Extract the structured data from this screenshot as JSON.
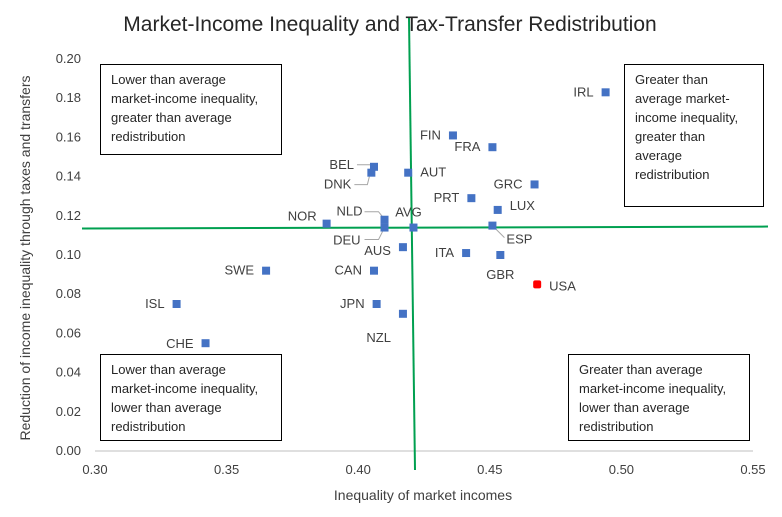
{
  "chart_data": {
    "type": "scatter",
    "title": "Market-Income Inequality and Tax-Transfer Redistribution",
    "xlabel": "Inequality of market incomes",
    "ylabel": "Reduction of income inequality through taxes and transfers",
    "xlim": [
      0.3,
      0.55
    ],
    "ylim": [
      0.0,
      0.2
    ],
    "xticks": [
      "0.30",
      "0.35",
      "0.40",
      "0.45",
      "0.50",
      "0.55"
    ],
    "yticks": [
      "0.00",
      "0.02",
      "0.04",
      "0.06",
      "0.08",
      "0.10",
      "0.12",
      "0.14",
      "0.16",
      "0.18",
      "0.20"
    ],
    "grid": false,
    "legend": "none",
    "reference_lines": {
      "average_x": 0.421,
      "average_y": 0.114
    },
    "points": [
      {
        "label": "IRL",
        "x": 0.494,
        "y": 0.183
      },
      {
        "label": "FIN",
        "x": 0.436,
        "y": 0.161
      },
      {
        "label": "FRA",
        "x": 0.451,
        "y": 0.155
      },
      {
        "label": "BEL",
        "x": 0.406,
        "y": 0.145
      },
      {
        "label": "DNK",
        "x": 0.405,
        "y": 0.142
      },
      {
        "label": "AUT",
        "x": 0.419,
        "y": 0.142
      },
      {
        "label": "GRC",
        "x": 0.467,
        "y": 0.136
      },
      {
        "label": "PRT",
        "x": 0.443,
        "y": 0.129
      },
      {
        "label": "LUX",
        "x": 0.453,
        "y": 0.123
      },
      {
        "label": "NOR",
        "x": 0.388,
        "y": 0.116
      },
      {
        "label": "NLD",
        "x": 0.41,
        "y": 0.118
      },
      {
        "label": "AVG",
        "x": 0.421,
        "y": 0.114
      },
      {
        "label": "DEU",
        "x": 0.41,
        "y": 0.114
      },
      {
        "label": "ESP",
        "x": 0.451,
        "y": 0.115
      },
      {
        "label": "AUS",
        "x": 0.417,
        "y": 0.104
      },
      {
        "label": "ITA",
        "x": 0.441,
        "y": 0.101
      },
      {
        "label": "GBR",
        "x": 0.454,
        "y": 0.1
      },
      {
        "label": "SWE",
        "x": 0.365,
        "y": 0.092
      },
      {
        "label": "CAN",
        "x": 0.406,
        "y": 0.092
      },
      {
        "label": "USA",
        "x": 0.468,
        "y": 0.085,
        "highlight": true
      },
      {
        "label": "ISL",
        "x": 0.331,
        "y": 0.075
      },
      {
        "label": "JPN",
        "x": 0.407,
        "y": 0.075
      },
      {
        "label": "NZL",
        "x": 0.417,
        "y": 0.07
      },
      {
        "label": "CHE",
        "x": 0.342,
        "y": 0.055
      }
    ],
    "annotations": {
      "top_left": "Lower than average market-income inequality, greater than average redistribution",
      "top_right": "Greater than average market-income inequality, greater than average redistribution",
      "bottom_left": "Lower than average market-income inequality, lower than average redistribution",
      "bottom_right": "Greater than average market-income inequality, lower than average redistribution"
    }
  },
  "colors": {
    "point": "#4472C4",
    "highlight_point": "#FF0000",
    "reference_line": "#00A050",
    "axis": "#BFBFBF",
    "text": "#404040"
  }
}
